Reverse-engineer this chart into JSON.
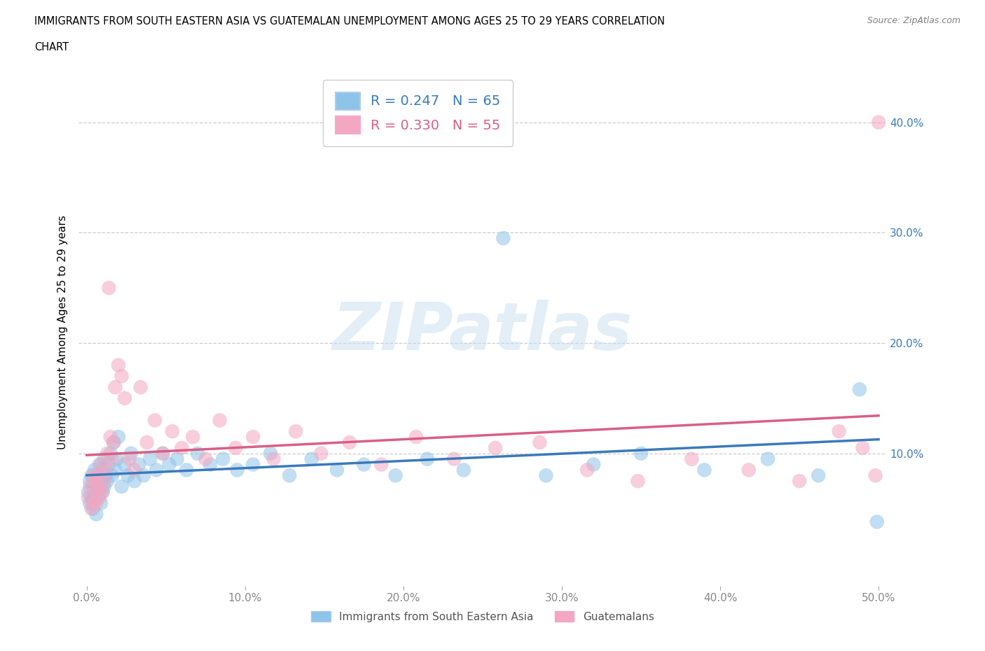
{
  "title_line1": "IMMIGRANTS FROM SOUTH EASTERN ASIA VS GUATEMALAN UNEMPLOYMENT AMONG AGES 25 TO 29 YEARS CORRELATION",
  "title_line2": "CHART",
  "source": "Source: ZipAtlas.com",
  "ylabel": "Unemployment Among Ages 25 to 29 years",
  "xlim": [
    -0.005,
    0.505
  ],
  "ylim": [
    -0.02,
    0.44
  ],
  "xticks": [
    0.0,
    0.1,
    0.2,
    0.3,
    0.4,
    0.5
  ],
  "yticks": [
    0.1,
    0.2,
    0.3,
    0.4
  ],
  "xtick_labels": [
    "0.0%",
    "10.0%",
    "20.0%",
    "30.0%",
    "40.0%",
    "50.0%"
  ],
  "ytick_labels": [
    "10.0%",
    "20.0%",
    "30.0%",
    "40.0%"
  ],
  "blue_R": 0.247,
  "blue_N": 65,
  "pink_R": 0.33,
  "pink_N": 55,
  "blue_color": "#8ec4e8",
  "pink_color": "#f4a7c0",
  "blue_line_color": "#3a7abb",
  "pink_line_color": "#d95f85",
  "right_tick_color": "#3a7abb",
  "legend_label_blue": "Immigrants from South Eastern Asia",
  "legend_label_pink": "Guatemalans",
  "background_color": "#ffffff",
  "blue_x": [
    0.001,
    0.002,
    0.002,
    0.003,
    0.003,
    0.004,
    0.004,
    0.005,
    0.005,
    0.006,
    0.006,
    0.007,
    0.007,
    0.008,
    0.008,
    0.009,
    0.009,
    0.01,
    0.01,
    0.011,
    0.011,
    0.012,
    0.013,
    0.014,
    0.015,
    0.016,
    0.017,
    0.018,
    0.019,
    0.02,
    0.022,
    0.024,
    0.026,
    0.028,
    0.03,
    0.033,
    0.036,
    0.04,
    0.044,
    0.048,
    0.052,
    0.057,
    0.063,
    0.07,
    0.078,
    0.086,
    0.095,
    0.105,
    0.116,
    0.128,
    0.142,
    0.158,
    0.175,
    0.195,
    0.215,
    0.238,
    0.263,
    0.29,
    0.32,
    0.35,
    0.39,
    0.43,
    0.462,
    0.488,
    0.499
  ],
  "blue_y": [
    0.065,
    0.055,
    0.075,
    0.06,
    0.08,
    0.07,
    0.05,
    0.085,
    0.06,
    0.07,
    0.045,
    0.08,
    0.06,
    0.09,
    0.065,
    0.075,
    0.055,
    0.085,
    0.065,
    0.095,
    0.07,
    0.08,
    0.075,
    0.09,
    0.1,
    0.08,
    0.11,
    0.085,
    0.095,
    0.115,
    0.07,
    0.09,
    0.08,
    0.1,
    0.075,
    0.09,
    0.08,
    0.095,
    0.085,
    0.1,
    0.09,
    0.095,
    0.085,
    0.1,
    0.09,
    0.095,
    0.085,
    0.09,
    0.1,
    0.08,
    0.095,
    0.085,
    0.09,
    0.08,
    0.095,
    0.085,
    0.295,
    0.08,
    0.09,
    0.1,
    0.085,
    0.095,
    0.08,
    0.158,
    0.038
  ],
  "pink_x": [
    0.001,
    0.002,
    0.003,
    0.004,
    0.004,
    0.005,
    0.006,
    0.006,
    0.007,
    0.008,
    0.008,
    0.009,
    0.01,
    0.011,
    0.012,
    0.013,
    0.014,
    0.015,
    0.016,
    0.017,
    0.018,
    0.02,
    0.022,
    0.024,
    0.027,
    0.03,
    0.034,
    0.038,
    0.043,
    0.048,
    0.054,
    0.06,
    0.067,
    0.075,
    0.084,
    0.094,
    0.105,
    0.118,
    0.132,
    0.148,
    0.166,
    0.186,
    0.208,
    0.232,
    0.258,
    0.286,
    0.316,
    0.348,
    0.382,
    0.418,
    0.45,
    0.475,
    0.49,
    0.498,
    0.5
  ],
  "pink_y": [
    0.06,
    0.07,
    0.05,
    0.08,
    0.055,
    0.075,
    0.065,
    0.055,
    0.08,
    0.07,
    0.06,
    0.09,
    0.065,
    0.075,
    0.085,
    0.1,
    0.25,
    0.115,
    0.095,
    0.11,
    0.16,
    0.18,
    0.17,
    0.15,
    0.095,
    0.085,
    0.16,
    0.11,
    0.13,
    0.1,
    0.12,
    0.105,
    0.115,
    0.095,
    0.13,
    0.105,
    0.115,
    0.095,
    0.12,
    0.1,
    0.11,
    0.09,
    0.115,
    0.095,
    0.105,
    0.11,
    0.085,
    0.075,
    0.095,
    0.085,
    0.075,
    0.12,
    0.105,
    0.08,
    0.4
  ]
}
